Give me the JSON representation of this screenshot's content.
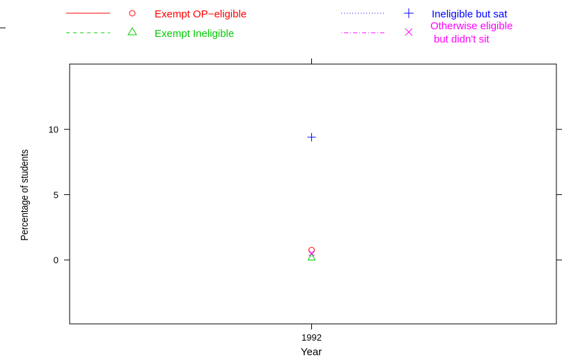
{
  "chart_data": {
    "type": "scatter",
    "title": "",
    "xlabel": "Year",
    "ylabel": "Percentage of students",
    "x": [
      1992
    ],
    "x_tick_labels": [
      "1992"
    ],
    "y_ticks": [
      0,
      5,
      10
    ],
    "ylim": [
      -4.9,
      15
    ],
    "grid": false,
    "legend_position": "top",
    "series": [
      {
        "name": "Exempt OP−eligible",
        "color": "#ff0000",
        "line_style": "solid",
        "marker": "circle",
        "values": [
          0.75
        ]
      },
      {
        "name": "Exempt Ineligible",
        "color": "#00cc00",
        "line_style": "dashed",
        "marker": "triangle",
        "values": [
          0.2
        ]
      },
      {
        "name": "Ineligible but sat",
        "color": "#0000ff",
        "line_style": "dotted",
        "marker": "plus",
        "values": [
          9.4
        ]
      },
      {
        "name": "Otherwise eligible",
        "name_line2": "but didn't sit",
        "color": "#ff00ff",
        "line_style": "dotdash",
        "marker": "cross",
        "values": [
          0.5
        ]
      }
    ]
  }
}
